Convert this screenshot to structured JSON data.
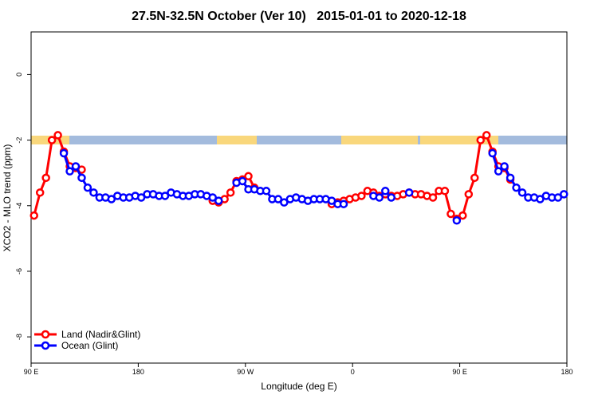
{
  "chart_data": {
    "type": "line",
    "title": "27.5N-32.5N October (Ver 10)   2015-01-01 to 2020-12-18",
    "xlabel": "Longitude (deg E)",
    "ylabel": "XCO2 - MLO trend (ppm)",
    "xlim": [
      90,
      540
    ],
    "ylim": [
      -8.8,
      1.3
    ],
    "xticks": [
      {
        "value": 90,
        "label": "90 E"
      },
      180,
      {
        "value": 270,
        "label": "90 W"
      },
      {
        "value": 360,
        "label": "0"
      },
      {
        "value": 450,
        "label": "90 E"
      },
      {
        "value": 540,
        "label": "180"
      }
    ],
    "yticks": [
      0,
      -2,
      -4,
      -6,
      -8
    ],
    "legend": "bottom-left",
    "series": [
      {
        "name": "Land (Nadir&Glint)",
        "color": "#ff0000",
        "x": [
          92.5,
          97.5,
          102.5,
          107.5,
          112.5,
          117.5,
          122.5,
          127.5,
          132.5,
          null,
          242.5,
          247.5,
          252.5,
          257.5,
          262.5,
          267.5,
          272.5,
          277.5,
          null,
          342.5,
          347.5,
          352.5,
          357.5,
          362.5,
          367.5,
          372.5,
          377.5,
          382.5,
          387.5,
          392.5,
          397.5,
          402.5,
          407.5,
          412.5,
          417.5,
          422.5,
          427.5,
          432.5,
          437.5,
          442.5,
          447.5,
          452.5,
          457.5,
          462.5,
          467.5,
          472.5,
          477.5,
          482.5,
          487.5,
          492.5
        ],
        "values": [
          -4.3,
          -3.6,
          -3.15,
          -2.0,
          -1.85,
          -2.35,
          -2.8,
          -2.85,
          -2.9,
          null,
          -3.85,
          -3.9,
          -3.8,
          -3.6,
          -3.25,
          -3.2,
          -3.1,
          -3.45,
          null,
          -3.95,
          -3.9,
          -3.85,
          -3.8,
          -3.75,
          -3.7,
          -3.55,
          -3.6,
          -3.7,
          -3.65,
          -3.7,
          -3.7,
          -3.65,
          -3.6,
          -3.65,
          -3.65,
          -3.7,
          -3.75,
          -3.55,
          -3.55,
          -4.25,
          -4.4,
          -4.3,
          -3.65,
          -3.15,
          -2.0,
          -1.85,
          -2.35,
          -2.8,
          -2.85,
          -3.2
        ]
      },
      {
        "name": "Ocean (Glint)",
        "color": "#0000ff",
        "x": [
          117.5,
          122.5,
          127.5,
          132.5,
          137.5,
          142.5,
          147.5,
          152.5,
          157.5,
          162.5,
          167.5,
          172.5,
          177.5,
          182.5,
          187.5,
          192.5,
          197.5,
          202.5,
          207.5,
          212.5,
          217.5,
          222.5,
          227.5,
          232.5,
          237.5,
          242.5,
          247.5,
          null,
          262.5,
          267.5,
          272.5,
          277.5,
          282.5,
          287.5,
          292.5,
          297.5,
          302.5,
          307.5,
          312.5,
          317.5,
          322.5,
          327.5,
          332.5,
          337.5,
          342.5,
          347.5,
          352.5,
          null,
          377.5,
          382.5,
          387.5,
          392.5,
          null,
          407.5,
          null,
          447.5,
          null,
          477.5,
          482.5,
          487.5,
          492.5,
          497.5,
          502.5,
          507.5,
          512.5,
          517.5,
          522.5,
          527.5,
          532.5,
          537.5
        ],
        "values": [
          -2.4,
          -2.95,
          -2.8,
          -3.15,
          -3.45,
          -3.6,
          -3.75,
          -3.75,
          -3.8,
          -3.7,
          -3.75,
          -3.75,
          -3.7,
          -3.75,
          -3.65,
          -3.65,
          -3.7,
          -3.7,
          -3.6,
          -3.65,
          -3.7,
          -3.7,
          -3.65,
          -3.65,
          -3.7,
          -3.75,
          -3.85,
          null,
          -3.3,
          -3.25,
          -3.5,
          -3.5,
          -3.55,
          -3.55,
          -3.8,
          -3.8,
          -3.9,
          -3.8,
          -3.75,
          -3.8,
          -3.85,
          -3.8,
          -3.8,
          -3.8,
          -3.85,
          -3.95,
          -3.95,
          null,
          -3.7,
          -3.75,
          -3.55,
          -3.75,
          null,
          -3.6,
          null,
          -4.45,
          null,
          -2.4,
          -2.95,
          -2.8,
          -3.15,
          -3.45,
          -3.6,
          -3.75,
          -3.75,
          -3.8,
          -3.7,
          -3.75,
          -3.75,
          -3.65
        ]
      }
    ]
  }
}
